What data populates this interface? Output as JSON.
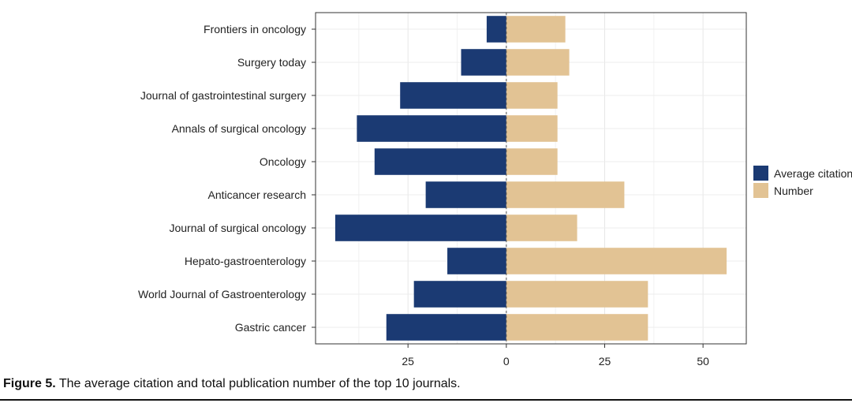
{
  "chart_data": {
    "type": "bar",
    "orientation": "horizontal-diverging",
    "categories": [
      "Frontiers in oncology",
      "Surgery today",
      "Journal of gastrointestinal surgery",
      "Annals of surgical oncology",
      "Oncology",
      "Anticancer research",
      "Journal of surgical oncology",
      "Hepato-gastroenterology",
      "World Journal of Gastroenterology",
      "Gastric cancer"
    ],
    "series": [
      {
        "name": "Average citation",
        "direction": "left",
        "color": "#1b3a73",
        "values": [
          5,
          11.5,
          27,
          38,
          33.5,
          20.5,
          43.5,
          15,
          23.5,
          30.5
        ]
      },
      {
        "name": "Number",
        "direction": "right",
        "color": "#e2c394",
        "values": [
          15,
          16,
          13,
          13,
          13,
          30,
          18,
          56,
          36,
          36
        ]
      }
    ],
    "x_ticks": [
      {
        "value": -25,
        "label": "25"
      },
      {
        "value": 0,
        "label": "0"
      },
      {
        "value": 25,
        "label": "25"
      },
      {
        "value": 50,
        "label": "50"
      }
    ],
    "xlim": [
      -48.5,
      61
    ],
    "grid": true,
    "zero_line": "dashed",
    "legend_position": "right",
    "title": "",
    "xlabel": "",
    "ylabel": ""
  },
  "caption": {
    "label": "Figure 5.",
    "text": " The average citation and total publication number of the top 10 journals."
  }
}
